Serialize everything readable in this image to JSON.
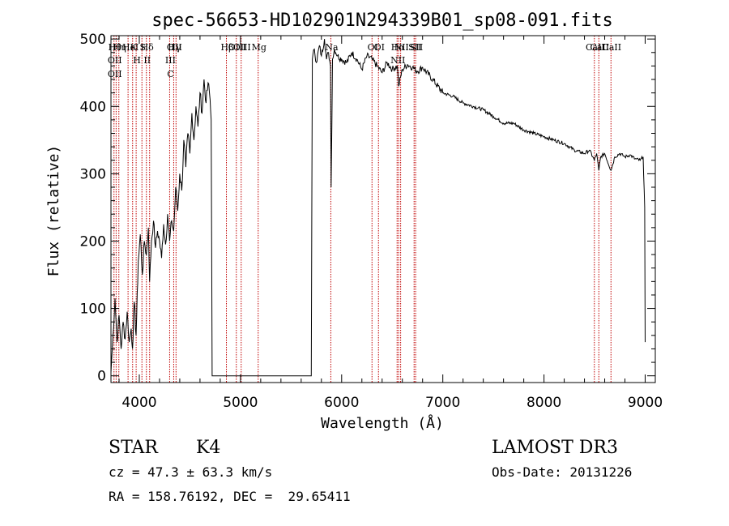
{
  "chart_data": {
    "type": "line",
    "title": "spec-56653-HD102901N294339B01_sp08-091.fits",
    "xlabel": "Wavelength (Å)",
    "ylabel": "Flux (relative)",
    "xlim": [
      3720,
      9100
    ],
    "ylim": [
      -10,
      505
    ],
    "x_ticks": [
      4000,
      5000,
      6000,
      7000,
      8000,
      9000
    ],
    "y_ticks": [
      0,
      100,
      200,
      300,
      400,
      500
    ],
    "grid": false,
    "series": [
      {
        "x": [
          3720,
          3740,
          3760,
          3780,
          3800,
          3820,
          3840,
          3860,
          3880,
          3900,
          3920,
          3933,
          3950,
          3968,
          3990,
          4010,
          4030,
          4050,
          4070,
          4090,
          4102,
          4120,
          4140,
          4160,
          4180,
          4200,
          4220,
          4240,
          4260,
          4280,
          4300,
          4320,
          4340,
          4360,
          4380,
          4400,
          4420,
          4440,
          4460,
          4480,
          4500,
          4520,
          4540,
          4560,
          4580,
          4600,
          4620,
          4640,
          4660,
          4680,
          4700,
          4710,
          4715,
          4720,
          5700,
          5710,
          5730,
          5750,
          5780,
          5800,
          5830,
          5850,
          5870,
          5890,
          5896,
          5910,
          5930,
          5960,
          6000,
          6050,
          6100,
          6150,
          6200,
          6250,
          6300,
          6350,
          6400,
          6450,
          6500,
          6550,
          6563,
          6600,
          6650,
          6700,
          6750,
          6800,
          6900,
          7000,
          7100,
          7200,
          7300,
          7400,
          7500,
          7600,
          7700,
          7800,
          7900,
          8000,
          8100,
          8200,
          8300,
          8400,
          8450,
          8498,
          8520,
          8542,
          8560,
          8600,
          8662,
          8700,
          8750,
          8800,
          8850,
          8900,
          8950,
          8980,
          8995,
          9000
        ],
        "y": [
          5,
          60,
          115,
          50,
          90,
          40,
          80,
          55,
          95,
          50,
          70,
          40,
          110,
          60,
          170,
          210,
          150,
          200,
          180,
          220,
          140,
          200,
          230,
          190,
          215,
          200,
          175,
          225,
          195,
          240,
          200,
          230,
          215,
          280,
          245,
          300,
          275,
          350,
          310,
          360,
          330,
          390,
          350,
          400,
          370,
          420,
          390,
          440,
          405,
          435,
          410,
          380,
          200,
          0,
          0,
          470,
          485,
          465,
          490,
          475,
          500,
          470,
          480,
          460,
          280,
          470,
          485,
          475,
          470,
          465,
          480,
          470,
          455,
          475,
          470,
          460,
          450,
          465,
          455,
          460,
          430,
          455,
          462,
          458,
          452,
          458,
          440,
          420,
          415,
          405,
          400,
          395,
          385,
          375,
          375,
          365,
          360,
          355,
          350,
          345,
          335,
          330,
          335,
          320,
          330,
          305,
          325,
          330,
          305,
          325,
          330,
          325,
          328,
          322,
          320,
          325,
          250,
          50
        ]
      }
    ],
    "lines": [
      {
        "x": 3750,
        "labels": [
          "Hθ",
          "OII",
          "OII"
        ]
      },
      {
        "x": 3771,
        "labels": [
          ""
        ]
      },
      {
        "x": 3798,
        "labels": [
          "Hη"
        ]
      },
      {
        "x": 3889,
        "labels": [
          "He"
        ]
      },
      {
        "x": 3934,
        "labels": [
          "K"
        ]
      },
      {
        "x": 3969,
        "labels": [
          "I",
          "H"
        ]
      },
      {
        "x": 4026,
        "labels": [
          "S"
        ]
      },
      {
        "x": 4070,
        "labels": [
          "Hδ",
          "II"
        ]
      },
      {
        "x": 4102,
        "labels": [
          ""
        ]
      },
      {
        "x": 4300,
        "labels": [
          "O",
          "III",
          "C"
        ]
      },
      {
        "x": 4340,
        "labels": [
          "Hγ"
        ]
      },
      {
        "x": 4363,
        "labels": [
          "III"
        ]
      },
      {
        "x": 4861,
        "labels": [
          "Hβ"
        ]
      },
      {
        "x": 4959,
        "labels": [
          "OIII"
        ]
      },
      {
        "x": 5007,
        "labels": [
          "OIII"
        ]
      },
      {
        "x": 5175,
        "labels": [
          "Mg"
        ]
      },
      {
        "x": 5893,
        "labels": [
          "Na"
        ]
      },
      {
        "x": 6300,
        "labels": [
          "OI"
        ]
      },
      {
        "x": 6364,
        "labels": [
          "OI"
        ]
      },
      {
        "x": 6548,
        "labels": [
          "Hα",
          "NII"
        ]
      },
      {
        "x": 6563,
        "labels": [
          ""
        ]
      },
      {
        "x": 6583,
        "labels": [
          "NII"
        ]
      },
      {
        "x": 6716,
        "labels": [
          "SII"
        ]
      },
      {
        "x": 6731,
        "labels": [
          "SII"
        ]
      },
      {
        "x": 8498,
        "labels": [
          "CaII"
        ]
      },
      {
        "x": 8542,
        "labels": [
          "CaII"
        ]
      },
      {
        "x": 8662,
        "labels": [
          "CaII"
        ]
      }
    ]
  },
  "info": {
    "class": "STAR",
    "subclass": "K4",
    "survey": "LAMOST DR3",
    "cz": "cz = 47.3 ± 63.3 km/s",
    "obs_date": "Obs-Date: 20131226",
    "radec": "RA = 158.76192, DEC =  29.65411"
  }
}
